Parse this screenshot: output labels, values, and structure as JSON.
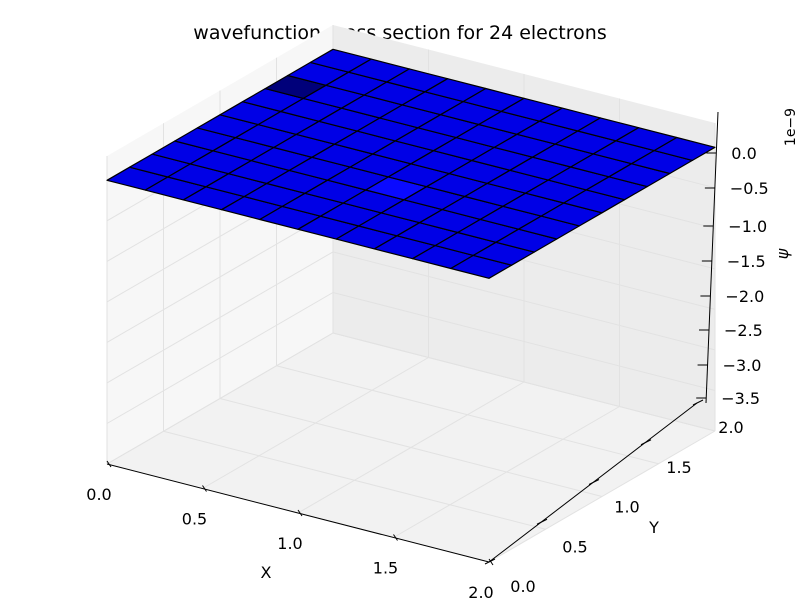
{
  "chart_data": {
    "type": "surface",
    "title": "wavefunction cross section for 24 electrons",
    "xlabel": "X",
    "ylabel": "Y",
    "zlabel": "ψ",
    "z_offset_label": "1e−9",
    "xlim": [
      0,
      2
    ],
    "ylim": [
      0,
      2
    ],
    "zlim": [
      -3.5,
      0.3
    ],
    "x_ticks": [
      "0.0",
      "0.5",
      "1.0",
      "1.5",
      "2.0"
    ],
    "y_ticks": [
      "0.0",
      "0.5",
      "1.0",
      "1.5",
      "2.0"
    ],
    "z_ticks": [
      "0.0",
      "−0.5",
      "−1.0",
      "−1.5",
      "−2.0",
      "−2.5",
      "−3.0",
      "−3.5"
    ],
    "grid": true,
    "surface_color": "#0000e6",
    "edge_color": "#000000",
    "grid_size": [
      10,
      10
    ],
    "surface_value": 0.0
  }
}
